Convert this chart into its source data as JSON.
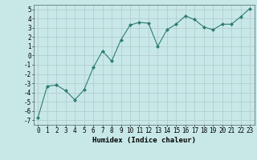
{
  "x": [
    0,
    1,
    2,
    3,
    4,
    5,
    6,
    7,
    8,
    9,
    10,
    11,
    12,
    13,
    14,
    15,
    16,
    17,
    18,
    19,
    20,
    21,
    22,
    23
  ],
  "y": [
    -6.7,
    -3.3,
    -3.2,
    -3.8,
    -4.8,
    -3.7,
    -1.3,
    0.5,
    -0.6,
    1.7,
    3.3,
    3.6,
    3.5,
    1.0,
    2.8,
    3.4,
    4.3,
    3.9,
    3.1,
    2.8,
    3.4,
    3.4,
    4.2,
    5.1
  ],
  "line_color": "#2e7d6e",
  "marker": "D",
  "marker_size": 2,
  "bg_color": "#c8e8e8",
  "grid_color": "#b0c8c8",
  "xlabel": "Humidex (Indice chaleur)",
  "ylim": [
    -7.5,
    5.5
  ],
  "xlim": [
    -0.5,
    23.5
  ],
  "yticks": [
    -7,
    -6,
    -5,
    -4,
    -3,
    -2,
    -1,
    0,
    1,
    2,
    3,
    4,
    5
  ],
  "xticks": [
    0,
    1,
    2,
    3,
    4,
    5,
    6,
    7,
    8,
    9,
    10,
    11,
    12,
    13,
    14,
    15,
    16,
    17,
    18,
    19,
    20,
    21,
    22,
    23
  ],
  "label_fontsize": 6.5,
  "tick_fontsize": 5.5
}
